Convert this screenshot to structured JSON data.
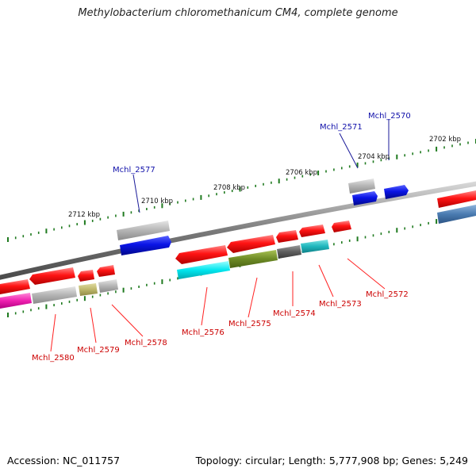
{
  "title": "Methylobacterium chloromethanicum CM4, complete genome",
  "footer": {
    "accession": "Accession: NC_011757",
    "summary": "Topology: circular; Length: 5,777,908 bp; Genes: 5,249"
  },
  "ticks": [
    "2702 kbp",
    "2704 kbp",
    "2706 kbp",
    "2708 kbp",
    "2710 kbp",
    "2712 kbp"
  ],
  "gene_labels": {
    "blue": [
      "Mchl_2570",
      "Mchl_2571",
      "Mchl_2577"
    ],
    "red": [
      "Mchl_2572",
      "Mchl_2573",
      "Mchl_2574",
      "Mchl_2575",
      "Mchl_2576",
      "Mchl_2578",
      "Mchl_2579",
      "Mchl_2580"
    ]
  },
  "colors": {
    "backbone": "#7a7a7a",
    "gene_red": "#ff1a1a",
    "gene_blue": "#0a14e6",
    "label_blue": "#1010aa",
    "label_red": "#cc0000",
    "tick_green": "#1f7a1f"
  }
}
